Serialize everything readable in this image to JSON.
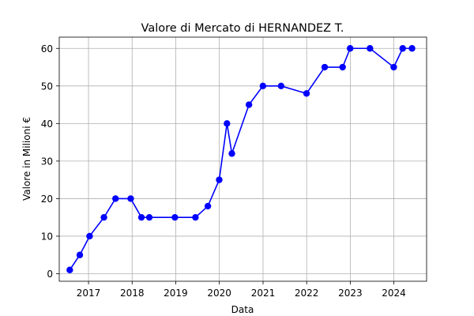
{
  "chart_data": {
    "type": "line",
    "title": "Valore di Mercato di HERNANDEZ T.",
    "xlabel": "Data",
    "ylabel": "Valore in Milioni €",
    "x_ticks": [
      "2017",
      "2018",
      "2019",
      "2020",
      "2021",
      "2022",
      "2023",
      "2024"
    ],
    "y_ticks": [
      0,
      10,
      20,
      30,
      40,
      50,
      60
    ],
    "xlim": [
      "2016-05-01",
      "2024-10-01"
    ],
    "ylim": [
      -2,
      63
    ],
    "grid": true,
    "line_color": "#0000ff",
    "marker": "circle",
    "series": [
      {
        "x": [
          "2016-07-28",
          "2016-10-20",
          "2017-01-10",
          "2017-05-10",
          "2017-08-15",
          "2017-12-20",
          "2018-03-20",
          "2018-05-25",
          "2018-12-25",
          "2019-06-15",
          "2019-09-27",
          "2019-12-31",
          "2020-03-05",
          "2020-04-15",
          "2020-09-05",
          "2020-12-31",
          "2021-06-01",
          "2021-12-31",
          "2022-06-01",
          "2022-10-29",
          "2022-12-31",
          "2023-06-15",
          "2023-12-31",
          "2024-03-15",
          "2024-06-01"
        ],
        "y": [
          1,
          5,
          10,
          15,
          20,
          20,
          15,
          15,
          15,
          15,
          18,
          25,
          40,
          32,
          45,
          50,
          50,
          48,
          55,
          55,
          60,
          60,
          55,
          60,
          60
        ]
      }
    ]
  }
}
